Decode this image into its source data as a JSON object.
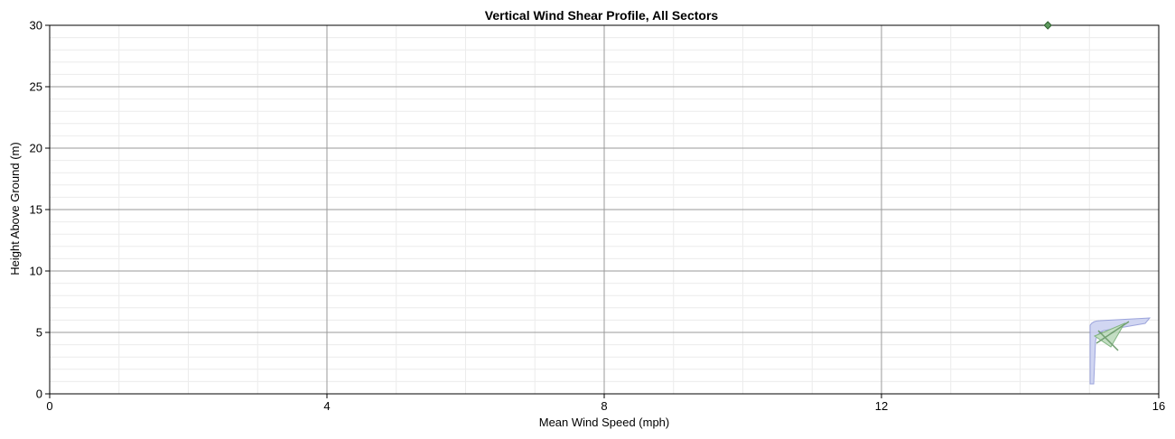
{
  "chart_data": {
    "type": "scatter",
    "title": "Vertical Wind Shear Profile, All Sectors",
    "xlabel": "Mean Wind Speed (mph)",
    "ylabel": "Height Above Ground (m)",
    "xlim": [
      0,
      16
    ],
    "ylim": [
      0,
      30
    ],
    "x_ticks": [
      0,
      4,
      8,
      12,
      16
    ],
    "y_ticks": [
      0,
      5,
      10,
      15,
      20,
      25,
      30
    ],
    "x_minor_step": 1,
    "y_minor_step": 1,
    "grid": true,
    "points": [
      {
        "x": 14.4,
        "y": 30
      }
    ],
    "marker": "diamond",
    "colors": {
      "marker_fill": "#5e9a5e",
      "marker_stroke": "#2e5e2e",
      "major_grid": "#9a9a9a",
      "minor_grid": "#ececec"
    }
  },
  "logo": {
    "icon": "wind-kite-logo"
  }
}
